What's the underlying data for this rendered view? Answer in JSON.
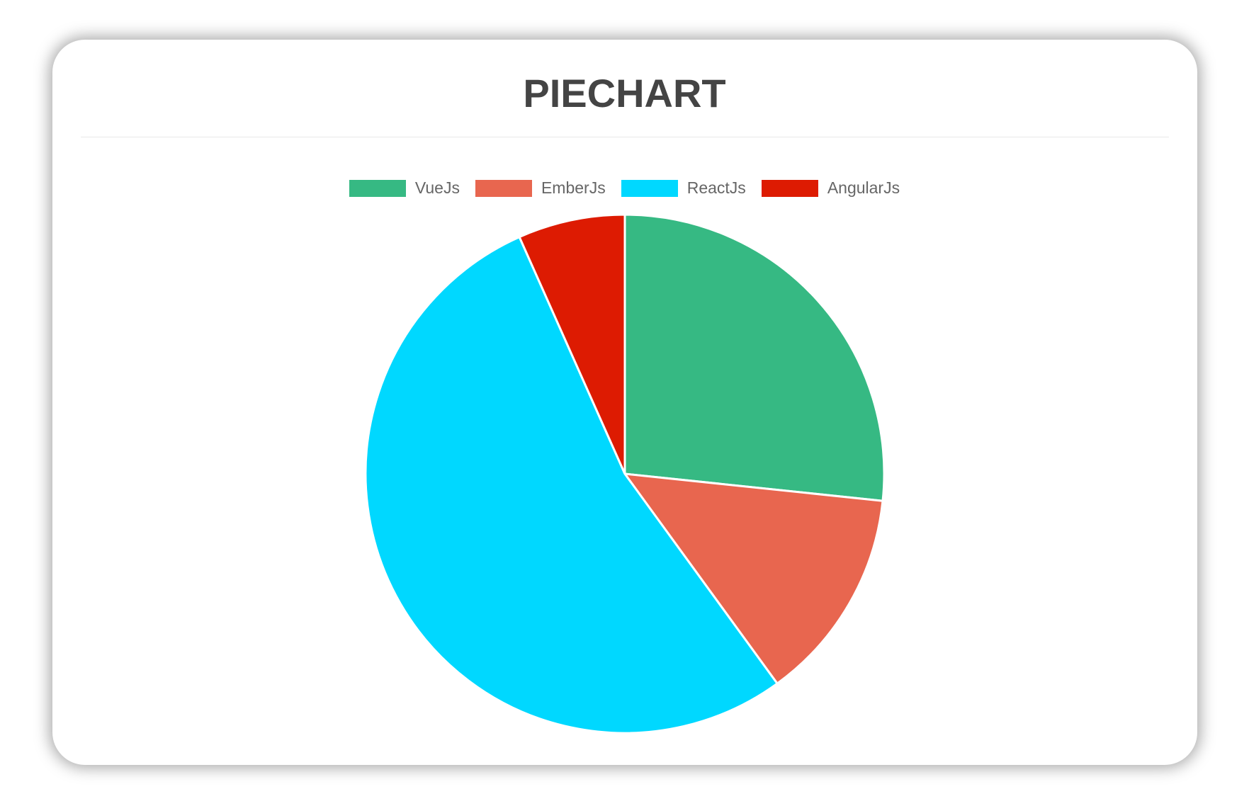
{
  "chart_data": {
    "type": "pie",
    "title": "PIECHART",
    "categories": [
      "VueJs",
      "EmberJs",
      "ReactJs",
      "AngularJs"
    ],
    "values": [
      40,
      20,
      80,
      10
    ],
    "colors": [
      "#36b983",
      "#e8664f",
      "#00d8ff",
      "#dd1b02"
    ],
    "legend_position": "top"
  }
}
